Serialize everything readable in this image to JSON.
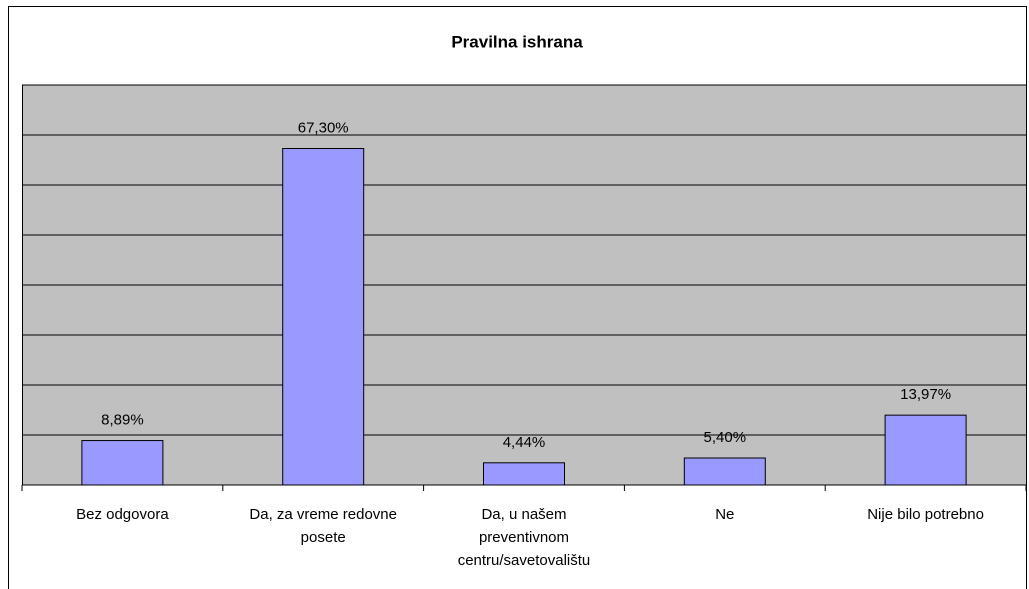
{
  "chart_data": {
    "type": "bar",
    "title": "Pravilna ishrana",
    "categories": [
      "Bez odgovora",
      "Da, za vreme redovne posete",
      "Da, u našem preventivnom centru/savetovalištu",
      "Ne",
      "Nije bilo potrebno"
    ],
    "values": [
      8.89,
      67.3,
      4.44,
      5.4,
      13.97
    ],
    "value_labels": [
      "8,89%",
      "67,30%",
      "4,44%",
      "5,40%",
      "13,97%"
    ],
    "color": "#9999ff",
    "ylim": [
      0,
      80
    ],
    "yticks": [
      0,
      10,
      20,
      30,
      40,
      50,
      60,
      70,
      80
    ],
    "grid": true
  }
}
